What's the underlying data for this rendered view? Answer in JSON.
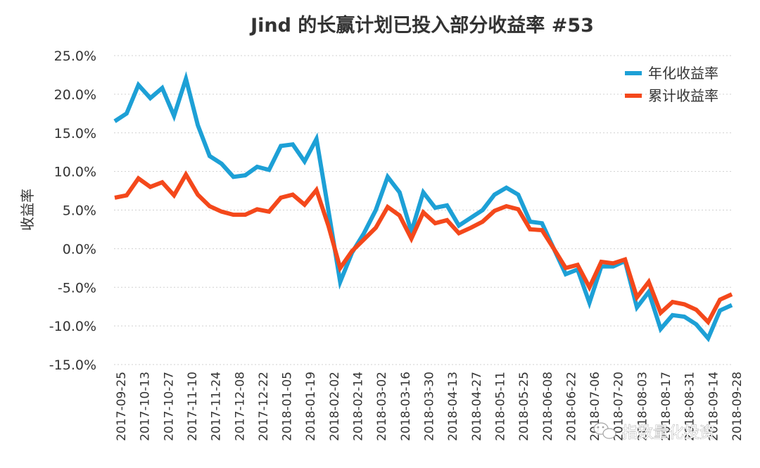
{
  "chart_data": {
    "type": "line",
    "title": "Jind 的长赢计划已投入部分收益率 #53",
    "xlabel": "",
    "ylabel": "收益率",
    "ylim": [
      -15,
      25
    ],
    "yticks": [
      25,
      20,
      15,
      10,
      5,
      0,
      -5,
      -10,
      -15
    ],
    "ytick_labels": [
      "25.0%",
      "20.0%",
      "15.0%",
      "10.0%",
      "5.0%",
      "0.0%",
      "-5.0%",
      "-10.0%",
      "-15.0%"
    ],
    "x_tick_labels": [
      "2017-09-25",
      "2017-10-13",
      "2017-10-27",
      "2017-11-10",
      "2017-11-24",
      "2017-12-08",
      "2017-12-22",
      "2018-01-05",
      "2018-01-19",
      "2018-02-02",
      "2018-02-14",
      "2018-03-02",
      "2018-03-16",
      "2018-03-30",
      "2018-04-13",
      "2018-04-27",
      "2018-05-11",
      "2018-05-25",
      "2018-06-08",
      "2018-06-22",
      "2018-07-06",
      "2018-07-20",
      "2018-08-03",
      "2018-08-17",
      "2018-08-31",
      "2018-09-14",
      "2018-09-28"
    ],
    "grid": true,
    "legend_position": "top-right",
    "series": [
      {
        "name": "年化收益率",
        "color": "#1da0d6",
        "values": [
          16.5,
          17.5,
          21.2,
          19.5,
          20.8,
          17.2,
          22.0,
          16.0,
          12.0,
          11.0,
          9.3,
          9.5,
          10.6,
          10.2,
          13.3,
          13.5,
          11.3,
          14.2,
          5.0,
          -4.3,
          -0.5,
          2.0,
          5.0,
          9.3,
          7.3,
          2.2,
          7.3,
          5.3,
          5.6,
          3.0,
          4.0,
          5.0,
          7.0,
          7.9,
          7.0,
          3.5,
          3.3,
          0.0,
          -3.3,
          -2.7,
          -7.0,
          -2.3,
          -2.3,
          -1.6,
          -7.6,
          -5.6,
          -10.4,
          -8.6,
          -8.8,
          -9.8,
          -11.6,
          -8.0,
          -7.3
        ]
      },
      {
        "name": "累计收益率",
        "color": "#f4481b",
        "values": [
          6.6,
          6.9,
          9.1,
          8.0,
          8.6,
          6.9,
          9.6,
          7.0,
          5.5,
          4.8,
          4.4,
          4.4,
          5.1,
          4.8,
          6.6,
          7.0,
          5.7,
          7.6,
          3.0,
          -2.5,
          -0.3,
          1.2,
          2.7,
          5.4,
          4.3,
          1.3,
          4.7,
          3.3,
          3.7,
          2.0,
          2.7,
          3.5,
          4.9,
          5.5,
          5.1,
          2.5,
          2.4,
          0.0,
          -2.5,
          -2.1,
          -5.0,
          -1.7,
          -1.9,
          -1.4,
          -6.3,
          -4.3,
          -8.3,
          -6.9,
          -7.2,
          -7.9,
          -9.5,
          -6.6,
          -5.9
        ]
      }
    ]
  },
  "watermark": {
    "text": "指数量化投资"
  }
}
